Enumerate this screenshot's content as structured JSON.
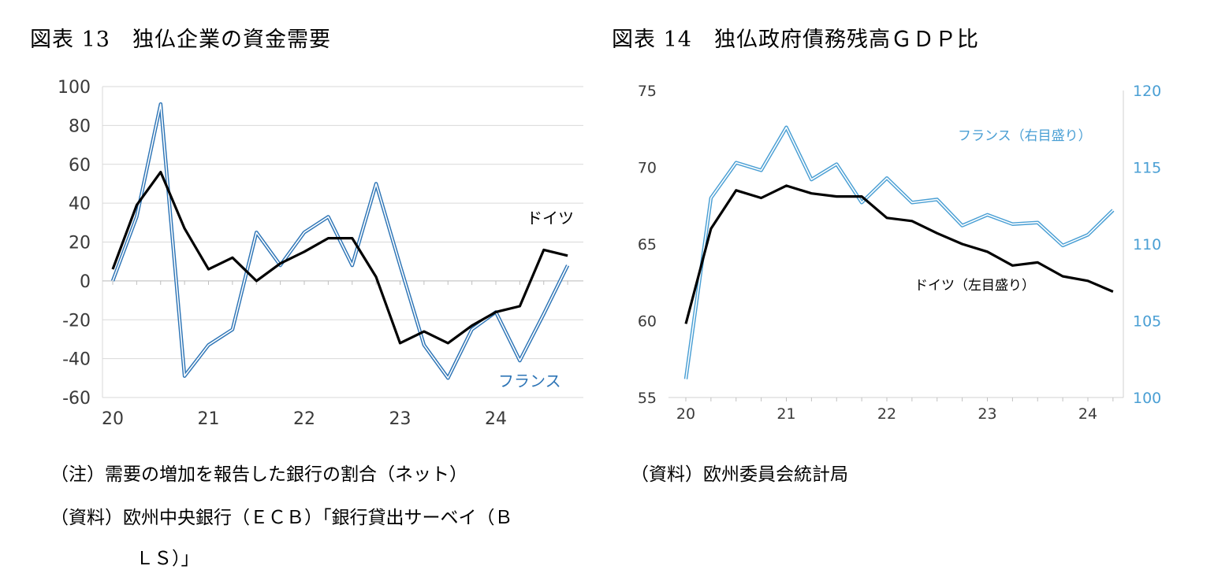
{
  "figure13": {
    "title": "図表 13　独仏企業の資金需要",
    "note": "（注）需要の増加を報告した銀行の割合（ネット）",
    "source_line1": "（資料）欧州中央銀行（ＥＣＢ）「銀行貸出サーベイ（Ｂ",
    "source_line2": "ＬＳ）」"
  },
  "figure14": {
    "title": "図表 14　独仏政府債務残高ＧＤＰ比",
    "source": "（資料）欧州委員会統計局"
  },
  "colors": {
    "germany": "#000000",
    "france": "#2e75b6",
    "france_right": "#4a9fd4",
    "grid": "#d9d9d9"
  },
  "chart_data": [
    {
      "type": "line",
      "title": "独仏企業の資金需要",
      "ylim": [
        -60,
        100
      ],
      "yticks": [
        "100",
        "80",
        "60",
        "40",
        "20",
        "0",
        "-20",
        "-40",
        "-60"
      ],
      "xticks": [
        "20",
        "21",
        "22",
        "23",
        "24"
      ],
      "grid": true,
      "series": [
        {
          "name": "ドイツ",
          "x": [
            0,
            0.25,
            0.5,
            0.75,
            1,
            1.25,
            1.5,
            1.75,
            2,
            2.25,
            2.5,
            2.75,
            3,
            3.25,
            3.5,
            3.75,
            4,
            4.25,
            4.5,
            4.75
          ],
          "values": [
            6,
            39,
            56,
            27,
            6,
            12,
            0,
            9,
            15,
            22,
            22,
            2,
            -32,
            -26,
            -32,
            -23,
            -16,
            -13,
            16,
            13
          ]
        },
        {
          "name": "フランス",
          "x": [
            0,
            0.25,
            0.5,
            0.75,
            1,
            1.25,
            1.5,
            1.75,
            2,
            2.25,
            2.5,
            2.75,
            3,
            3.25,
            3.5,
            3.75,
            4,
            4.25,
            4.5,
            4.75
          ],
          "values": [
            0,
            33,
            91,
            -49,
            -33,
            -25,
            25,
            8,
            25,
            33,
            8,
            50,
            8,
            -33,
            -50,
            -25,
            -16,
            -41,
            -17,
            8
          ]
        }
      ],
      "annotations": [
        "ドイツ",
        "フランス"
      ]
    },
    {
      "type": "line",
      "title": "独仏政府債務残高ＧＤＰ比",
      "ylim_left": [
        55,
        75
      ],
      "ylim_right": [
        100,
        120
      ],
      "yticks_left": [
        "75",
        "70",
        "65",
        "60",
        "55"
      ],
      "yticks_right": [
        "120",
        "115",
        "110",
        "105",
        "100"
      ],
      "xticks": [
        "20",
        "21",
        "22",
        "23",
        "24"
      ],
      "grid": false,
      "series": [
        {
          "name": "ドイツ（左目盛り）",
          "axis": "left",
          "x": [
            0,
            0.25,
            0.5,
            0.75,
            1,
            1.25,
            1.5,
            1.75,
            2,
            2.25,
            2.5,
            2.75,
            3,
            3.25,
            3.5,
            3.75,
            4,
            4.25
          ],
          "values": [
            59.8,
            66.0,
            68.5,
            68.0,
            68.8,
            68.3,
            68.1,
            68.1,
            66.7,
            66.5,
            65.7,
            65.0,
            64.5,
            63.6,
            63.8,
            62.9,
            62.6,
            61.9
          ]
        },
        {
          "name": "フランス（右目盛り）",
          "axis": "right",
          "x": [
            0,
            0.25,
            0.5,
            0.75,
            1,
            1.25,
            1.5,
            1.75,
            2,
            2.25,
            2.5,
            2.75,
            3,
            3.25,
            3.5,
            3.75,
            4,
            4.25
          ],
          "values": [
            101.2,
            113.0,
            115.3,
            114.8,
            117.6,
            114.2,
            115.2,
            112.7,
            114.3,
            112.7,
            112.9,
            111.2,
            111.9,
            111.3,
            111.4,
            109.9,
            110.6,
            112.2
          ]
        }
      ],
      "annotations": [
        "フランス（右目盛り）",
        "ドイツ（左目盛り）"
      ]
    }
  ]
}
